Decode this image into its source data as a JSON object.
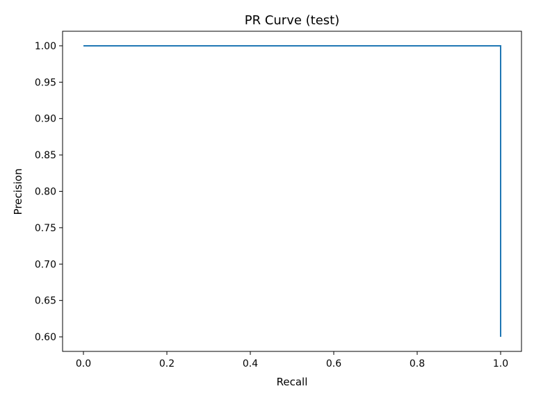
{
  "chart_data": {
    "type": "line",
    "title": "PR Curve (test)",
    "xlabel": "Recall",
    "ylabel": "Precision",
    "xlim": [
      -0.05,
      1.05
    ],
    "ylim": [
      0.58,
      1.02
    ],
    "xticks": [
      0.0,
      0.2,
      0.4,
      0.6,
      0.8,
      1.0
    ],
    "xtick_labels": [
      "0.0",
      "0.2",
      "0.4",
      "0.6",
      "0.8",
      "1.0"
    ],
    "yticks": [
      0.6,
      0.65,
      0.7,
      0.75,
      0.8,
      0.85,
      0.9,
      0.95,
      1.0
    ],
    "ytick_labels": [
      "0.60",
      "0.65",
      "0.70",
      "0.75",
      "0.80",
      "0.85",
      "0.90",
      "0.95",
      "1.00"
    ],
    "grid": false,
    "series": [
      {
        "color": "#1f77b4",
        "x": [
          0.0,
          1.0,
          1.0
        ],
        "y": [
          1.0,
          1.0,
          0.6
        ]
      }
    ]
  }
}
